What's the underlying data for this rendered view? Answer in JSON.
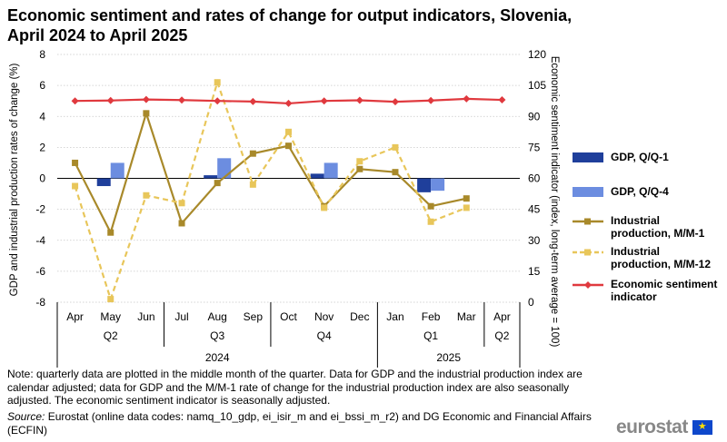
{
  "title": "Economic sentiment and rates of change for output indicators, Slovenia, April 2024 to April 2025",
  "chart_data": {
    "type": "bar+line",
    "title": "Economic sentiment and rates of change for output indicators, Slovenia, April 2024 to April 2025",
    "ylabel_left": "GDP and industrial production rates of change (%)",
    "ylabel_right": "Economic sentiment indicator (index, long-term average = 100)",
    "ylim_left": [
      -8,
      8
    ],
    "yticks_left": [
      "8",
      "6",
      "4",
      "2",
      "0",
      "-2",
      "-4",
      "-6",
      "-8"
    ],
    "ylim_right": [
      0,
      120
    ],
    "yticks_right": [
      "120",
      "105",
      "90",
      "75",
      "60",
      "45",
      "30",
      "15",
      "0"
    ],
    "months": [
      "Apr",
      "May",
      "Jun",
      "Jul",
      "Aug",
      "Sep",
      "Oct",
      "Nov",
      "Dec",
      "Jan",
      "Feb",
      "Mar",
      "Apr"
    ],
    "quarters": [
      "Q2",
      "Q3",
      "Q4",
      "Q1",
      "Q2"
    ],
    "years": [
      "2024",
      "2025"
    ],
    "grid": true,
    "legend_position": "right",
    "series": [
      {
        "name": "GDP, Q/Q-1",
        "kind": "bar",
        "axis": "left",
        "color": "#1f3f9b",
        "values": [
          null,
          -0.5,
          null,
          null,
          0.2,
          null,
          null,
          0.3,
          null,
          null,
          -0.9,
          null,
          null
        ]
      },
      {
        "name": "GDP, Q/Q-4",
        "kind": "bar",
        "axis": "left",
        "color": "#6c8de0",
        "values": [
          null,
          1.0,
          null,
          null,
          1.3,
          null,
          null,
          1.0,
          null,
          null,
          -0.8,
          null,
          null
        ]
      },
      {
        "name": "Industrial production, M/M-1",
        "kind": "line",
        "axis": "left",
        "color": "#a8892a",
        "values": [
          1.0,
          -3.5,
          4.2,
          -2.9,
          -0.3,
          1.6,
          2.1,
          -1.8,
          0.6,
          0.4,
          -1.8,
          -1.3,
          null
        ]
      },
      {
        "name": "Industrial production, M/M-12",
        "kind": "dashed-line",
        "axis": "left",
        "color": "#e8c65a",
        "values": [
          -0.5,
          -7.8,
          -1.1,
          -1.6,
          6.2,
          -0.4,
          3.0,
          -1.9,
          1.1,
          2.0,
          -2.8,
          -1.9,
          null
        ]
      },
      {
        "name": "Economic sentiment indicator",
        "kind": "line",
        "axis": "right",
        "color": "#e0393e",
        "values": [
          97.5,
          97.7,
          98.2,
          97.9,
          97.5,
          97.2,
          96.3,
          97.5,
          97.8,
          97.1,
          97.7,
          98.5,
          98.0
        ]
      }
    ]
  },
  "legend": [
    {
      "label": "GDP, Q/Q-1",
      "color": "#1f3f9b"
    },
    {
      "label": "GDP, Q/Q-4",
      "color": "#6c8de0"
    },
    {
      "label": "Industrial production, M/M-1",
      "color": "#a8892a"
    },
    {
      "label": "Industrial production, M/M-12",
      "color": "#e8c65a"
    },
    {
      "label": "Economic sentiment indicator",
      "color": "#e0393e"
    }
  ],
  "note": "Note: quarterly data are plotted in the middle month of the quarter. Data for GDP and the industrial production index are calendar adjusted; data for GDP and the M/M-1 rate of change for the industrial production index are also seasonally adjusted. The economic sentiment indicator is seasonally adjusted.",
  "source_label": "Source:",
  "source_text": "Eurostat (online data codes: namq_10_gdp, ei_isir_m and ei_bssi_m_r2) and DG Economic and Financial Affairs (ECFIN)",
  "logo_text": "eurostat"
}
